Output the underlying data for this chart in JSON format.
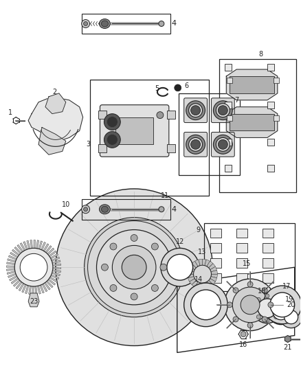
{
  "bg_color": "#ffffff",
  "lc": "#222222",
  "fig_width": 4.38,
  "fig_height": 5.33,
  "dpi": 100
}
